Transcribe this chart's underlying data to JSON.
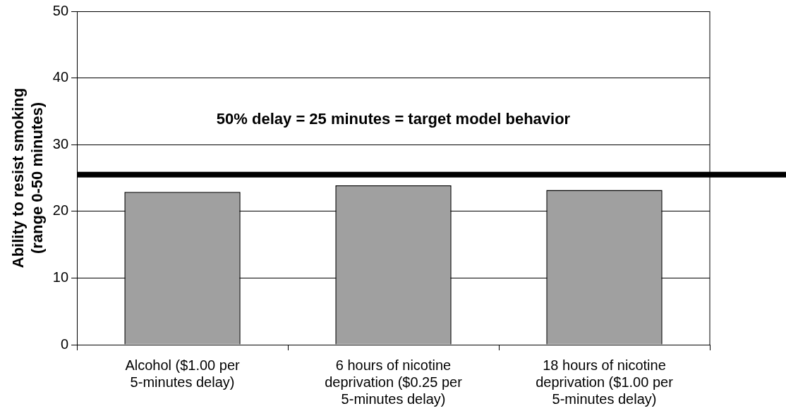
{
  "chart_data": {
    "type": "bar",
    "ylabel": "Ability to resist smoking (range 0-50 minutes)",
    "categories": [
      "Alcohol ($1.00 per 5-minutes delay)",
      "6 hours of nicotine deprivation ($0.25 per 5-minutes delay)",
      "18 hours of nicotine deprivation ($1.00 per 5-minutes delay)"
    ],
    "values": [
      22.9,
      23.9,
      23.2
    ],
    "color": "#a0a0a0",
    "ylim": [
      0,
      50
    ],
    "yticks": [
      0,
      10,
      20,
      30,
      40,
      50
    ],
    "grid": "y",
    "ref_lines": [
      {
        "axis": "y",
        "value": 25.5,
        "label": "50% delay = 25 minutes = target model behavior",
        "color": "#000000"
      }
    ]
  }
}
